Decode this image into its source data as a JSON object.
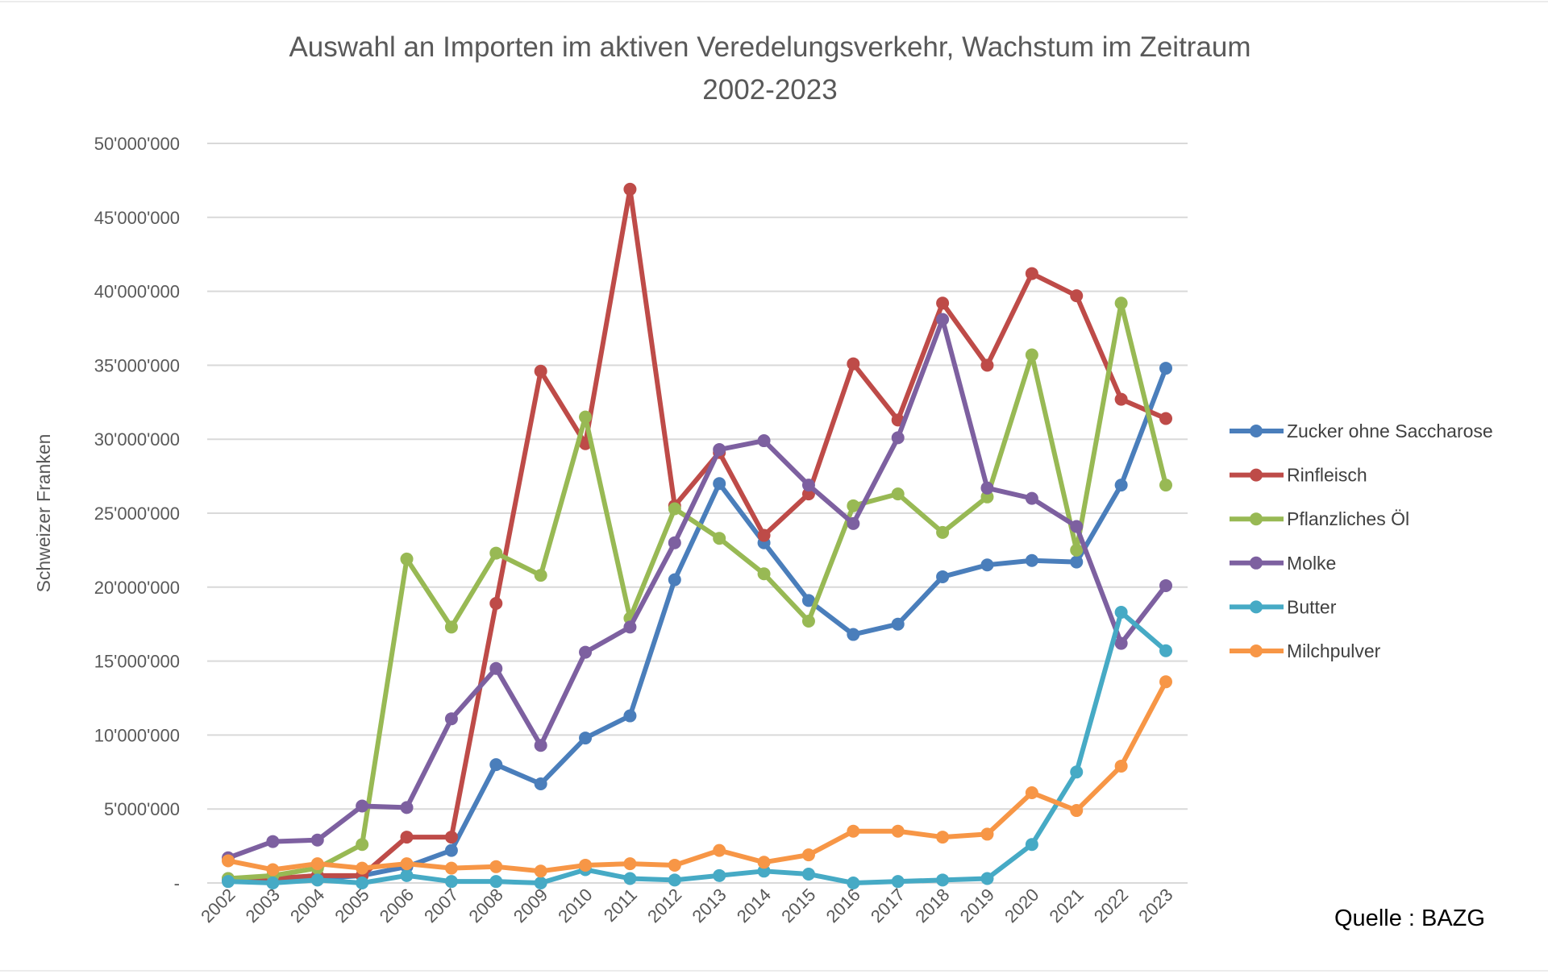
{
  "chart_data": {
    "type": "line",
    "title": "Auswahl an Importen im aktiven Veredelungsverkehr,  Wachstum im Zeitraum 2002-2023",
    "title_lines": [
      "Auswahl an Importen im aktiven Veredelungsverkehr,  Wachstum im Zeitraum",
      "2002-2023"
    ],
    "xlabel": "",
    "ylabel": "Schweizer Franken",
    "ylim": [
      0,
      50000000
    ],
    "y_ticks": [
      0,
      5000000,
      10000000,
      15000000,
      20000000,
      25000000,
      30000000,
      35000000,
      40000000,
      45000000,
      50000000
    ],
    "y_tick_labels": [
      "-",
      "5'000'000",
      "10'000'000",
      "15'000'000",
      "20'000'000",
      "25'000'000",
      "30'000'000",
      "35'000'000",
      "40'000'000",
      "45'000'000",
      "50'000'000"
    ],
    "grid": true,
    "legend_position": "right",
    "categories": [
      "2002",
      "2003",
      "2004",
      "2005",
      "2006",
      "2007",
      "2008",
      "2009",
      "2010",
      "2011",
      "2012",
      "2013",
      "2014",
      "2015",
      "2016",
      "2017",
      "2018",
      "2019",
      "2020",
      "2021",
      "2022",
      "2023"
    ],
    "series": [
      {
        "name": "Zucker ohne Saccharose",
        "color": "#4a7ebb",
        "values": [
          300000,
          100000,
          300000,
          500000,
          1100000,
          2200000,
          8000000,
          6700000,
          9800000,
          11300000,
          20500000,
          27000000,
          23000000,
          19100000,
          16800000,
          17500000,
          20700000,
          21500000,
          21800000,
          21700000,
          26900000,
          34800000
        ]
      },
      {
        "name": "Rinfleisch",
        "color": "#be4b48",
        "values": [
          200000,
          300000,
          500000,
          500000,
          3100000,
          3100000,
          18900000,
          34600000,
          29700000,
          46900000,
          25500000,
          29100000,
          23500000,
          26300000,
          35100000,
          31300000,
          39200000,
          35000000,
          41200000,
          39700000,
          32700000,
          31400000
        ]
      },
      {
        "name": "Pflanzliches Öl",
        "color": "#98b954",
        "values": [
          300000,
          500000,
          1000000,
          2600000,
          21900000,
          17300000,
          22300000,
          20800000,
          31500000,
          17900000,
          25300000,
          23300000,
          20900000,
          17700000,
          25500000,
          26300000,
          23700000,
          26100000,
          35700000,
          22500000,
          39200000,
          26900000
        ]
      },
      {
        "name": "Molke",
        "color": "#7d60a0",
        "values": [
          1700000,
          2800000,
          2900000,
          5200000,
          5100000,
          11100000,
          14500000,
          9300000,
          15600000,
          17300000,
          23000000,
          29300000,
          29900000,
          26900000,
          24300000,
          30100000,
          38100000,
          26700000,
          26000000,
          24100000,
          16200000,
          20100000
        ]
      },
      {
        "name": "Butter",
        "color": "#46aac5",
        "values": [
          100000,
          0,
          200000,
          0,
          500000,
          100000,
          100000,
          0,
          900000,
          300000,
          200000,
          500000,
          800000,
          600000,
          0,
          100000,
          200000,
          300000,
          2600000,
          7500000,
          18300000,
          15700000
        ]
      },
      {
        "name": "Milchpulver",
        "color": "#f79646",
        "values": [
          1500000,
          900000,
          1300000,
          1000000,
          1300000,
          1000000,
          1100000,
          800000,
          1200000,
          1300000,
          1200000,
          2200000,
          1400000,
          1900000,
          3500000,
          3500000,
          3100000,
          3300000,
          6100000,
          4900000,
          7900000,
          13600000
        ]
      }
    ],
    "annotations": [
      "Quelle : BAZG"
    ]
  }
}
